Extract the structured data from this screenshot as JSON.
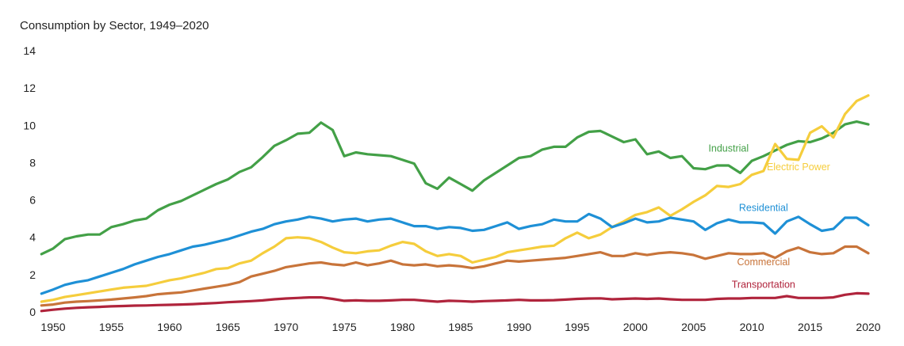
{
  "chart_data": {
    "type": "line",
    "title": "Consumption by Sector, 1949–2020",
    "xlabel": "",
    "ylabel": "",
    "xlim": [
      1949,
      2020
    ],
    "ylim": [
      0,
      14
    ],
    "y_ticks": [
      "0",
      "2",
      "4",
      "6",
      "8",
      "10",
      "12",
      "14"
    ],
    "x_ticks": [
      "1950",
      "1955",
      "1960",
      "1965",
      "1970",
      "1975",
      "1980",
      "1985",
      "1990",
      "1995",
      "2000",
      "2005",
      "2010",
      "2015",
      "2020"
    ],
    "grid": false,
    "legend": "inline labels",
    "x": [
      1949,
      1950,
      1951,
      1952,
      1953,
      1954,
      1955,
      1956,
      1957,
      1958,
      1959,
      1960,
      1961,
      1962,
      1963,
      1964,
      1965,
      1966,
      1967,
      1968,
      1969,
      1970,
      1971,
      1972,
      1973,
      1974,
      1975,
      1976,
      1977,
      1978,
      1979,
      1980,
      1981,
      1982,
      1983,
      1984,
      1985,
      1986,
      1987,
      1988,
      1989,
      1990,
      1991,
      1992,
      1993,
      1994,
      1995,
      1996,
      1997,
      1998,
      1999,
      2000,
      2001,
      2002,
      2003,
      2004,
      2005,
      2006,
      2007,
      2008,
      2009,
      2010,
      2011,
      2012,
      2013,
      2014,
      2015,
      2016,
      2017,
      2018,
      2019,
      2020
    ],
    "series": [
      {
        "name": "Industrial",
        "color": "#43a047",
        "label_at": [
          2008,
          8.6
        ],
        "values": [
          3.1,
          3.4,
          3.9,
          4.05,
          4.15,
          4.15,
          4.55,
          4.7,
          4.9,
          5.0,
          5.45,
          5.75,
          5.95,
          6.25,
          6.55,
          6.85,
          7.1,
          7.5,
          7.75,
          8.3,
          8.9,
          9.2,
          9.55,
          9.6,
          10.15,
          9.75,
          8.35,
          8.55,
          8.45,
          8.4,
          8.35,
          8.15,
          7.95,
          6.9,
          6.6,
          7.2,
          6.85,
          6.5,
          7.05,
          7.45,
          7.85,
          8.25,
          8.35,
          8.7,
          8.85,
          8.85,
          9.35,
          9.65,
          9.7,
          9.4,
          9.1,
          9.25,
          8.45,
          8.6,
          8.25,
          8.35,
          7.7,
          7.65,
          7.85,
          7.85,
          7.45,
          8.1,
          8.35,
          8.65,
          8.95,
          9.15,
          9.1,
          9.3,
          9.6,
          10.05,
          10.2,
          10.05
        ]
      },
      {
        "name": "Electric Power",
        "color": "#f5cd3c",
        "label_at": [
          2014,
          7.6
        ],
        "values": [
          0.55,
          0.65,
          0.8,
          0.9,
          1.0,
          1.1,
          1.2,
          1.3,
          1.35,
          1.4,
          1.55,
          1.7,
          1.8,
          1.95,
          2.1,
          2.3,
          2.35,
          2.6,
          2.75,
          3.15,
          3.5,
          3.95,
          4.0,
          3.95,
          3.75,
          3.45,
          3.2,
          3.15,
          3.25,
          3.3,
          3.55,
          3.75,
          3.65,
          3.25,
          3.0,
          3.1,
          3.0,
          2.65,
          2.8,
          2.95,
          3.2,
          3.3,
          3.4,
          3.5,
          3.55,
          3.95,
          4.25,
          3.95,
          4.15,
          4.55,
          4.85,
          5.2,
          5.35,
          5.6,
          5.15,
          5.5,
          5.9,
          6.25,
          6.75,
          6.7,
          6.85,
          7.35,
          7.55,
          9.0,
          8.2,
          8.15,
          9.6,
          9.95,
          9.35,
          10.6,
          11.3,
          11.6
        ]
      },
      {
        "name": "Residential",
        "color": "#1e90d6",
        "label_at": [
          2011,
          5.4
        ],
        "values": [
          0.98,
          1.2,
          1.45,
          1.6,
          1.7,
          1.9,
          2.1,
          2.3,
          2.55,
          2.75,
          2.95,
          3.1,
          3.3,
          3.5,
          3.6,
          3.75,
          3.9,
          4.1,
          4.3,
          4.45,
          4.7,
          4.85,
          4.95,
          5.1,
          5.0,
          4.85,
          4.95,
          5.0,
          4.85,
          4.95,
          5.0,
          4.8,
          4.6,
          4.6,
          4.45,
          4.55,
          4.5,
          4.35,
          4.4,
          4.6,
          4.8,
          4.45,
          4.6,
          4.7,
          4.95,
          4.85,
          4.85,
          5.25,
          5.0,
          4.55,
          4.75,
          5.0,
          4.8,
          4.85,
          5.05,
          4.95,
          4.85,
          4.4,
          4.75,
          4.95,
          4.8,
          4.8,
          4.75,
          4.2,
          4.85,
          5.1,
          4.7,
          4.35,
          4.45,
          5.05,
          5.05,
          4.65
        ]
      },
      {
        "name": "Commercial",
        "color": "#c8743a",
        "label_at": [
          2011,
          2.5
        ],
        "values": [
          0.35,
          0.4,
          0.5,
          0.55,
          0.58,
          0.62,
          0.66,
          0.72,
          0.78,
          0.85,
          0.95,
          1.0,
          1.05,
          1.15,
          1.25,
          1.35,
          1.45,
          1.6,
          1.9,
          2.05,
          2.2,
          2.4,
          2.5,
          2.6,
          2.65,
          2.55,
          2.5,
          2.65,
          2.5,
          2.6,
          2.75,
          2.55,
          2.5,
          2.55,
          2.45,
          2.5,
          2.45,
          2.35,
          2.45,
          2.6,
          2.75,
          2.7,
          2.75,
          2.8,
          2.85,
          2.9,
          3.0,
          3.1,
          3.2,
          3.0,
          3.0,
          3.15,
          3.05,
          3.15,
          3.2,
          3.15,
          3.05,
          2.85,
          3.0,
          3.15,
          3.1,
          3.1,
          3.15,
          2.9,
          3.25,
          3.45,
          3.2,
          3.1,
          3.15,
          3.5,
          3.5,
          3.15
        ]
      },
      {
        "name": "Transportation",
        "color": "#b0243c",
        "label_at": [
          2011,
          1.3
        ],
        "values": [
          0.05,
          0.12,
          0.18,
          0.22,
          0.25,
          0.27,
          0.3,
          0.32,
          0.34,
          0.35,
          0.37,
          0.38,
          0.4,
          0.42,
          0.45,
          0.48,
          0.52,
          0.55,
          0.58,
          0.62,
          0.68,
          0.72,
          0.75,
          0.78,
          0.78,
          0.7,
          0.6,
          0.62,
          0.6,
          0.6,
          0.62,
          0.65,
          0.65,
          0.6,
          0.55,
          0.6,
          0.58,
          0.55,
          0.58,
          0.6,
          0.62,
          0.65,
          0.62,
          0.62,
          0.63,
          0.66,
          0.7,
          0.72,
          0.73,
          0.68,
          0.7,
          0.72,
          0.7,
          0.72,
          0.68,
          0.65,
          0.65,
          0.65,
          0.7,
          0.72,
          0.72,
          0.75,
          0.75,
          0.75,
          0.85,
          0.75,
          0.75,
          0.75,
          0.78,
          0.92,
          1.0,
          0.98
        ]
      }
    ]
  }
}
